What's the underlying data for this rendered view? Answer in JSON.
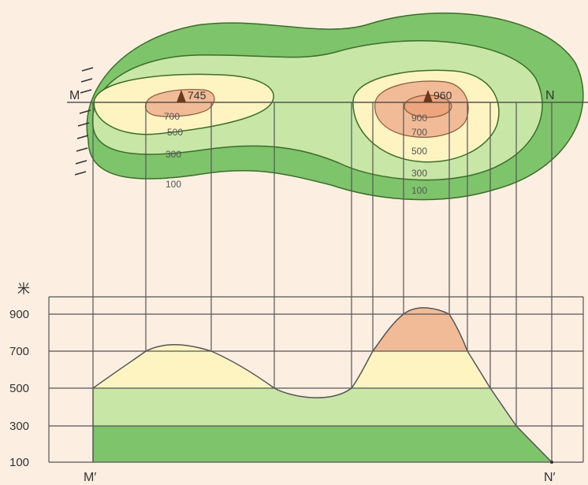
{
  "colors": {
    "background": "#fcefe2",
    "band_0_300": "#7ec46b",
    "band_300_500": "#c8e6a6",
    "band_500_700": "#fdf4c2",
    "band_700_up": "#f0bb96",
    "line": "#555555"
  },
  "map": {
    "line_start_label": "M",
    "line_end_label": "N",
    "peak_left": {
      "icon": "peak-triangle-icon",
      "elevation": "745"
    },
    "peak_right": {
      "icon": "peak-triangle-icon",
      "elevation": "960"
    },
    "left_contours": [
      "700",
      "500",
      "300",
      "100"
    ],
    "right_contours": [
      "900",
      "700",
      "500",
      "300",
      "100"
    ]
  },
  "profile": {
    "unit": "米",
    "y_ticks": [
      "900",
      "700",
      "500",
      "300",
      "100"
    ],
    "start_label": "M′",
    "end_label": "N′"
  }
}
